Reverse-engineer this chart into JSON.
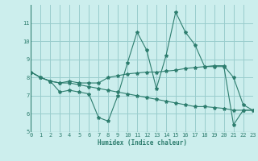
{
  "xlabel": "Humidex (Indice chaleur)",
  "x": [
    0,
    1,
    2,
    3,
    4,
    5,
    6,
    7,
    8,
    9,
    10,
    11,
    12,
    13,
    14,
    15,
    16,
    17,
    18,
    19,
    20,
    21,
    22,
    23
  ],
  "line1": [
    8.3,
    8.0,
    7.8,
    7.2,
    7.3,
    7.2,
    7.1,
    5.8,
    5.6,
    7.0,
    8.8,
    10.5,
    9.5,
    7.4,
    9.2,
    11.6,
    10.5,
    9.8,
    8.6,
    8.6,
    8.6,
    5.4,
    6.2,
    6.2
  ],
  "line2": [
    8.3,
    8.0,
    7.8,
    7.7,
    7.8,
    7.7,
    7.7,
    7.7,
    8.0,
    8.1,
    8.2,
    8.25,
    8.3,
    8.3,
    8.35,
    8.4,
    8.5,
    8.55,
    8.6,
    8.65,
    8.65,
    8.0,
    6.5,
    6.2
  ],
  "line3": [
    8.3,
    8.0,
    7.8,
    7.7,
    7.7,
    7.6,
    7.5,
    7.4,
    7.3,
    7.2,
    7.1,
    7.0,
    6.9,
    6.8,
    6.7,
    6.6,
    6.5,
    6.4,
    6.4,
    6.35,
    6.3,
    6.2,
    6.2,
    6.2
  ],
  "line_color": "#2d7d6e",
  "bg_color": "#cceeed",
  "grid_color": "#99cccc",
  "ylim": [
    5,
    12
  ],
  "yticks": [
    5,
    6,
    7,
    8,
    9,
    10,
    11
  ],
  "xlim": [
    0,
    23
  ]
}
